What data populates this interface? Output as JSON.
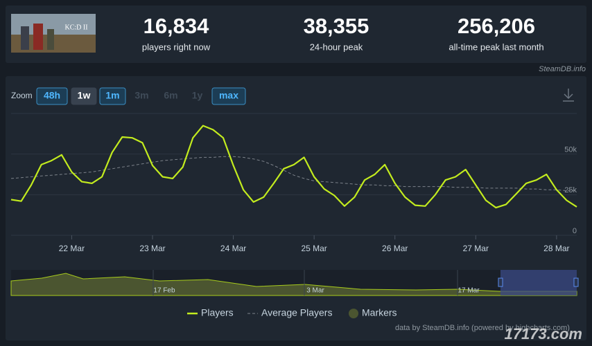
{
  "header": {
    "stats": [
      {
        "value": "16,834",
        "label": "players right now"
      },
      {
        "value": "38,355",
        "label": "24-hour peak"
      },
      {
        "value": "256,206",
        "label": "all-time peak last month"
      }
    ],
    "credit": "SteamDB.info"
  },
  "zoom": {
    "label": "Zoom",
    "buttons": [
      "48h",
      "1w",
      "1m",
      "3m",
      "6m",
      "1y",
      "max"
    ]
  },
  "chart_data": {
    "type": "line",
    "categories": [
      null,
      null,
      null,
      null,
      null,
      null,
      "22 Mar",
      null,
      null,
      null,
      null,
      null,
      null,
      null,
      "23 Mar",
      null,
      null,
      null,
      null,
      null,
      null,
      null,
      "24 Mar",
      null,
      null,
      null,
      null,
      null,
      null,
      null,
      "25 Mar",
      null,
      null,
      null,
      null,
      null,
      null,
      null,
      "26 Mar",
      null,
      null,
      null,
      null,
      null,
      null,
      null,
      "27 Mar",
      null,
      null,
      null,
      null,
      null,
      null,
      null,
      "28 Mar",
      null,
      null
    ],
    "series": [
      {
        "name": "Players",
        "color": "#c3ec1e",
        "values": [
          22000,
          21000,
          31000,
          43500,
          46000,
          49500,
          39000,
          33000,
          32000,
          36000,
          51000,
          60500,
          60000,
          57000,
          43000,
          36000,
          35000,
          42000,
          60000,
          67500,
          65000,
          60000,
          43000,
          28000,
          20500,
          23500,
          32000,
          41000,
          43500,
          48000,
          36000,
          28500,
          24500,
          18000,
          23500,
          34000,
          37500,
          43500,
          32000,
          23500,
          18500,
          18000,
          25000,
          34000,
          36000,
          40500,
          31000,
          21500,
          17000,
          19000,
          25500,
          32000,
          34000,
          37500,
          28000,
          21500,
          17500
        ]
      },
      {
        "name": "Average Players",
        "color": "#7d838b",
        "dashed": true,
        "values": [
          35000,
          35500,
          36000,
          36500,
          37000,
          37500,
          38000,
          38500,
          39000,
          40000,
          41000,
          42000,
          43000,
          44000,
          45000,
          46000,
          46500,
          47000,
          47500,
          48000,
          48000,
          48500,
          48500,
          48000,
          47000,
          45500,
          43000,
          40000,
          37000,
          35000,
          33500,
          33000,
          32500,
          32000,
          31500,
          31000,
          31000,
          30500,
          30500,
          30000,
          30000,
          30000,
          30000,
          30000,
          29500,
          29500,
          29500,
          29000,
          29000,
          29000,
          29000,
          28500,
          28500,
          28000,
          28000,
          27500,
          27500
        ]
      }
    ],
    "markers_legend": {
      "name": "Markers",
      "color": "#4b5530"
    },
    "ylim": [
      0,
      75000
    ],
    "yticks": [
      {
        "value": 0,
        "label": "0"
      },
      {
        "value": 25000,
        "label": "25k"
      },
      {
        "value": 50000,
        "label": "50k"
      }
    ],
    "grid": true,
    "navigator_labels": [
      "17 Feb",
      "3 Mar",
      "17 Mar"
    ],
    "footer": "data by SteamDB.info (powered by highcharts.com)"
  },
  "watermark": "17173.com"
}
